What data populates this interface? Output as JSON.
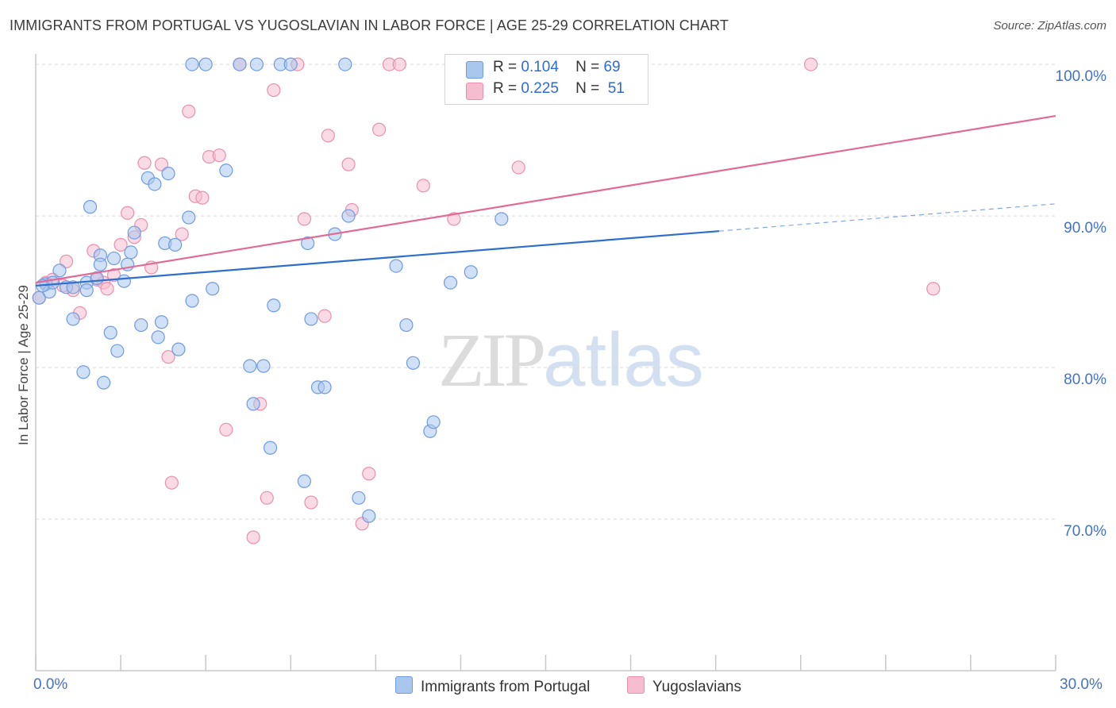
{
  "title": "IMMIGRANTS FROM PORTUGAL VS YUGOSLAVIAN IN LABOR FORCE | AGE 25-29 CORRELATION CHART",
  "source": "Source: ZipAtlas.com",
  "watermark": {
    "zip": "ZIP",
    "atlas": "atlas"
  },
  "colors": {
    "blue_fill": "#a9c6ef",
    "blue_stroke": "#6f9be0",
    "blue_line": "#2f6ecb",
    "pink_fill": "#f6bdd0",
    "pink_stroke": "#ea8fae",
    "pink_line": "#e06b97",
    "tick_label": "#4472c4",
    "grid": "#d9d9d9"
  },
  "legend": {
    "rows": [
      {
        "r_label": "R =",
        "r_value": "0.104",
        "n_label": "N =",
        "n_value": "69"
      },
      {
        "r_label": "R =",
        "r_value": "0.225",
        "n_label": "N =",
        "n_value": "51"
      }
    ]
  },
  "chart_data": {
    "type": "scatter",
    "title": "IMMIGRANTS FROM PORTUGAL VS YUGOSLAVIAN IN LABOR FORCE | AGE 25-29 CORRELATION CHART",
    "xlabel": "",
    "ylabel": "In Labor Force | Age 25-29",
    "xlim": [
      0,
      30
    ],
    "ylim": [
      60,
      101
    ],
    "x_tick_labels": [
      "0.0%",
      "30.0%"
    ],
    "y_ticks": [
      70,
      80,
      90,
      100
    ],
    "y_tick_labels": [
      "70.0%",
      "80.0%",
      "90.0%",
      "100.0%"
    ],
    "grid": true,
    "legend_position": "top-center",
    "series": [
      {
        "name": "Immigrants from Portugal",
        "color": "#a9c6ef",
        "trend": {
          "x0": 0,
          "y0": 85.4,
          "x1": 20.1,
          "y1": 89.0,
          "dashed_to_x": 30,
          "dashed_to_y": 90.8
        },
        "points": [
          [
            0.1,
            84.6
          ],
          [
            0.3,
            85.5
          ],
          [
            0.4,
            85.0
          ],
          [
            0.5,
            85.6
          ],
          [
            0.7,
            86.4
          ],
          [
            0.9,
            85.3
          ],
          [
            1.1,
            85.3
          ],
          [
            1.1,
            83.2
          ],
          [
            1.4,
            79.7
          ],
          [
            1.5,
            85.6
          ],
          [
            1.5,
            85.1
          ],
          [
            1.6,
            90.6
          ],
          [
            1.8,
            85.9
          ],
          [
            1.9,
            87.4
          ],
          [
            1.9,
            86.8
          ],
          [
            2.0,
            79.0
          ],
          [
            2.2,
            82.3
          ],
          [
            2.3,
            87.2
          ],
          [
            2.4,
            81.1
          ],
          [
            2.6,
            85.7
          ],
          [
            2.7,
            86.8
          ],
          [
            2.8,
            87.6
          ],
          [
            2.9,
            88.9
          ],
          [
            3.1,
            82.8
          ],
          [
            3.3,
            92.5
          ],
          [
            3.5,
            92.1
          ],
          [
            3.6,
            82.0
          ],
          [
            3.7,
            83.0
          ],
          [
            3.8,
            88.2
          ],
          [
            3.9,
            92.8
          ],
          [
            4.1,
            88.1
          ],
          [
            4.2,
            81.2
          ],
          [
            4.5,
            89.9
          ],
          [
            4.6,
            84.4
          ],
          [
            4.6,
            100.0
          ],
          [
            5.0,
            100.0
          ],
          [
            5.2,
            85.2
          ],
          [
            5.6,
            93.0
          ],
          [
            6.0,
            100.0
          ],
          [
            6.3,
            80.1
          ],
          [
            6.4,
            77.6
          ],
          [
            6.5,
            100.0
          ],
          [
            6.7,
            80.1
          ],
          [
            6.9,
            74.7
          ],
          [
            7.0,
            84.1
          ],
          [
            7.2,
            100.0
          ],
          [
            7.5,
            100.0
          ],
          [
            7.9,
            72.5
          ],
          [
            8.0,
            88.2
          ],
          [
            8.1,
            83.2
          ],
          [
            8.3,
            78.7
          ],
          [
            8.5,
            78.7
          ],
          [
            8.8,
            88.8
          ],
          [
            9.1,
            100.0
          ],
          [
            9.2,
            90.0
          ],
          [
            9.5,
            71.4
          ],
          [
            9.8,
            70.2
          ],
          [
            10.6,
            86.7
          ],
          [
            10.9,
            82.8
          ],
          [
            11.1,
            80.3
          ],
          [
            11.6,
            75.8
          ],
          [
            11.7,
            76.4
          ],
          [
            12.2,
            85.6
          ],
          [
            12.8,
            86.3
          ],
          [
            13.3,
            100.0
          ],
          [
            13.7,
            89.8
          ],
          [
            15.1,
            100.0
          ],
          [
            16.4,
            100.0
          ],
          [
            0.2,
            85.4
          ]
        ]
      },
      {
        "name": "Yugoslavians",
        "color": "#f6bdd0",
        "trend": {
          "x0": 0,
          "y0": 85.6,
          "x1": 30,
          "y1": 96.6
        },
        "points": [
          [
            0.1,
            84.6
          ],
          [
            0.3,
            85.6
          ],
          [
            0.5,
            85.8
          ],
          [
            0.8,
            85.4
          ],
          [
            0.9,
            87.0
          ],
          [
            1.1,
            85.1
          ],
          [
            1.3,
            83.6
          ],
          [
            1.7,
            87.7
          ],
          [
            1.8,
            85.8
          ],
          [
            2.0,
            85.6
          ],
          [
            2.1,
            85.2
          ],
          [
            2.3,
            86.1
          ],
          [
            2.5,
            88.1
          ],
          [
            2.7,
            90.2
          ],
          [
            2.9,
            88.6
          ],
          [
            3.1,
            89.4
          ],
          [
            3.2,
            93.5
          ],
          [
            3.4,
            86.6
          ],
          [
            3.7,
            93.4
          ],
          [
            3.9,
            80.7
          ],
          [
            4.0,
            72.4
          ],
          [
            4.3,
            88.8
          ],
          [
            4.5,
            96.9
          ],
          [
            4.7,
            91.3
          ],
          [
            4.9,
            91.2
          ],
          [
            5.1,
            93.9
          ],
          [
            5.4,
            94.0
          ],
          [
            5.6,
            75.9
          ],
          [
            6.0,
            100.0
          ],
          [
            6.4,
            68.8
          ],
          [
            6.6,
            77.6
          ],
          [
            6.8,
            71.4
          ],
          [
            7.0,
            98.3
          ],
          [
            7.7,
            100.0
          ],
          [
            7.9,
            89.8
          ],
          [
            8.1,
            71.1
          ],
          [
            8.5,
            83.4
          ],
          [
            8.6,
            95.3
          ],
          [
            9.2,
            93.4
          ],
          [
            9.3,
            90.4
          ],
          [
            9.6,
            69.7
          ],
          [
            9.8,
            73.0
          ],
          [
            10.1,
            95.7
          ],
          [
            10.4,
            100.0
          ],
          [
            10.7,
            100.0
          ],
          [
            11.4,
            92.0
          ],
          [
            12.3,
            89.8
          ],
          [
            14.2,
            93.2
          ],
          [
            17.1,
            100.0
          ],
          [
            22.8,
            100.0
          ],
          [
            26.4,
            85.2
          ]
        ]
      }
    ]
  },
  "bottom_legend": [
    "Immigrants from Portugal",
    "Yugoslavians"
  ]
}
